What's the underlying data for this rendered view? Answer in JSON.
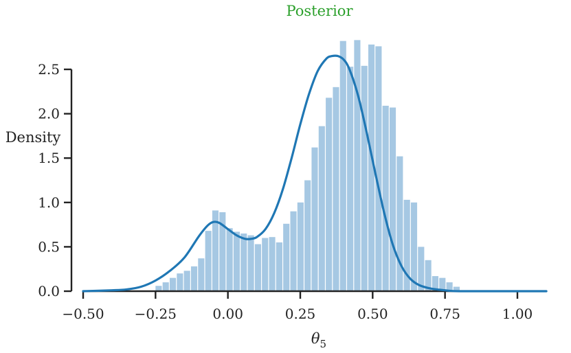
{
  "chart_data": {
    "type": "bar",
    "title": "Posterior",
    "title_color": "#2ca02c",
    "xlabel": "θ",
    "xlabel_subscript": "5",
    "ylabel": "Density",
    "xlim": [
      -0.5,
      1.1
    ],
    "ylim": [
      0,
      2.8
    ],
    "xticks": [
      "−0.50",
      "−0.25",
      "0.00",
      "0.25",
      "0.50",
      "0.75",
      "1.00"
    ],
    "xtick_values": [
      -0.5,
      -0.25,
      0.0,
      0.25,
      0.5,
      0.75,
      1.0
    ],
    "yticks": [
      "0.0",
      "0.5",
      "1.0",
      "1.5",
      "2.0",
      "2.5"
    ],
    "ytick_values": [
      0.0,
      0.5,
      1.0,
      1.5,
      2.0,
      2.5
    ],
    "grid": false,
    "bar_color": "#a6c8e3",
    "line_color": "#1f77b4",
    "histogram": {
      "bin_start": -0.25,
      "bin_width": 0.0245,
      "values": [
        0.06,
        0.1,
        0.15,
        0.2,
        0.23,
        0.28,
        0.37,
        0.68,
        0.91,
        0.89,
        0.71,
        0.67,
        0.65,
        0.63,
        0.53,
        0.6,
        0.61,
        0.55,
        0.76,
        0.9,
        1.0,
        1.25,
        1.62,
        1.86,
        2.18,
        2.3,
        2.82,
        2.53,
        2.83,
        2.54,
        2.78,
        2.76,
        2.09,
        2.07,
        1.52,
        1.03,
        1.0,
        0.5,
        0.35,
        0.17,
        0.15,
        0.1,
        0.05
      ]
    },
    "kde": {
      "x": [
        -0.5,
        -0.4,
        -0.35,
        -0.3,
        -0.25,
        -0.2,
        -0.15,
        -0.1,
        -0.07,
        -0.05,
        -0.03,
        0.0,
        0.03,
        0.06,
        0.08,
        0.1,
        0.13,
        0.16,
        0.19,
        0.22,
        0.25,
        0.28,
        0.31,
        0.34,
        0.36,
        0.38,
        0.4,
        0.42,
        0.45,
        0.48,
        0.51,
        0.54,
        0.57,
        0.6,
        0.63,
        0.66,
        0.7,
        0.75,
        0.8,
        1.0,
        1.1
      ],
      "y": [
        0.0,
        0.01,
        0.02,
        0.05,
        0.12,
        0.23,
        0.38,
        0.62,
        0.74,
        0.78,
        0.77,
        0.7,
        0.63,
        0.59,
        0.59,
        0.61,
        0.7,
        0.88,
        1.15,
        1.5,
        1.88,
        2.22,
        2.48,
        2.62,
        2.65,
        2.65,
        2.61,
        2.5,
        2.2,
        1.78,
        1.32,
        0.88,
        0.52,
        0.28,
        0.14,
        0.07,
        0.03,
        0.01,
        0.0,
        0.0,
        0.0
      ]
    }
  }
}
